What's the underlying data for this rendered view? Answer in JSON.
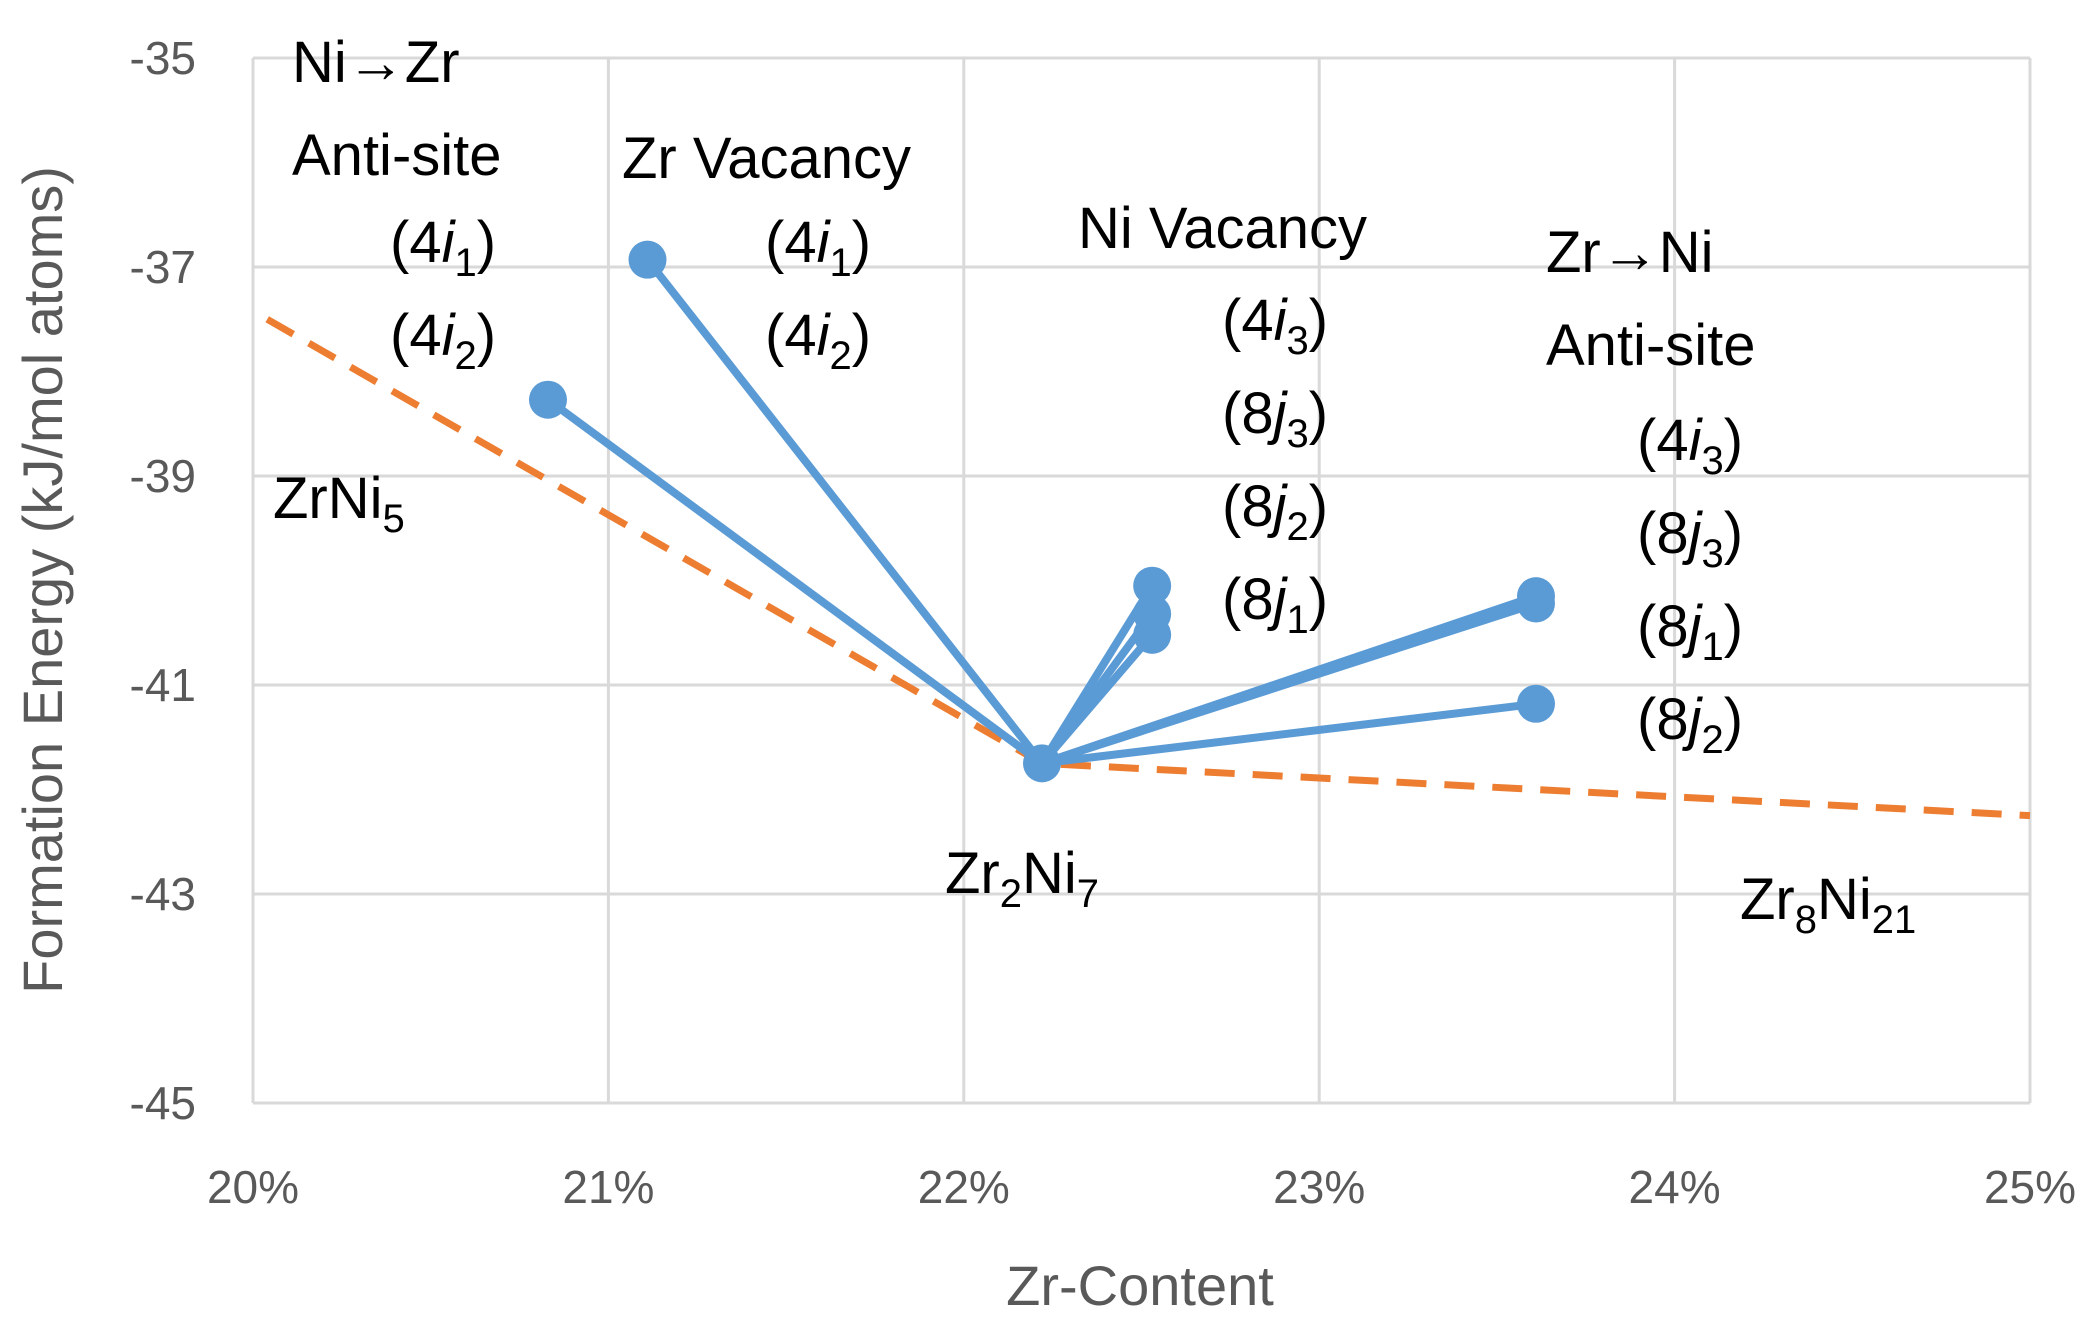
{
  "chart_data": {
    "type": "line",
    "title": "",
    "xlabel": "Zr-Content",
    "ylabel": "Formation Energy (kJ/mol atoms)",
    "xlim": [
      0.2,
      0.25
    ],
    "ylim": [
      -45,
      -35
    ],
    "x_ticks": [
      "20%",
      "21%",
      "22%",
      "23%",
      "24%",
      "25%"
    ],
    "y_ticks": [
      "-35",
      "-37",
      "-39",
      "-41",
      "-43",
      "-45"
    ],
    "grid": true,
    "legend": "none",
    "colors": {
      "defect": "#5b9bd5",
      "hull": "#ed7d31",
      "grid": "#d9d9d9",
      "tick": "#595959"
    },
    "hull": {
      "style": "dashed",
      "points": [
        {
          "x": 0.2004,
          "y": -37.5
        },
        {
          "x": 0.2222,
          "y": -41.75
        },
        {
          "x": 0.25,
          "y": -42.25
        }
      ]
    },
    "center": {
      "x": 0.2222,
      "y": -41.75
    },
    "defect_points": [
      {
        "x": 0.2083,
        "y": -38.27
      },
      {
        "x": 0.2111,
        "y": -36.93
      },
      {
        "x": 0.2253,
        "y": -40.05
      },
      {
        "x": 0.2253,
        "y": -40.32
      },
      {
        "x": 0.2253,
        "y": -40.52
      },
      {
        "x": 0.2361,
        "y": -40.15
      },
      {
        "x": 0.2361,
        "y": -40.22
      },
      {
        "x": 0.2361,
        "y": -41.18
      }
    ],
    "annotations": [
      {
        "lines": [
          [
            [
              "Ni→Zr",
              ""
            ]
          ],
          [
            [
              "Anti-site",
              ""
            ]
          ]
        ]
      },
      {
        "lines": [
          [
            [
              "(4",
              ""
            ],
            [
              "i",
              "it"
            ],
            [
              "1",
              "sub"
            ],
            [
              ")",
              ""
            ]
          ],
          [
            [
              "(4",
              ""
            ],
            [
              "i",
              "it"
            ],
            [
              "2",
              "sub"
            ],
            [
              ")",
              ""
            ]
          ]
        ]
      },
      {
        "lines": [
          [
            [
              "Zr Vacancy",
              ""
            ]
          ]
        ]
      },
      {
        "lines": [
          [
            [
              "(4",
              ""
            ],
            [
              "i",
              "it"
            ],
            [
              "1",
              "sub"
            ],
            [
              ")",
              ""
            ]
          ],
          [
            [
              "(4",
              ""
            ],
            [
              "i",
              "it"
            ],
            [
              "2",
              "sub"
            ],
            [
              ")",
              ""
            ]
          ]
        ]
      },
      {
        "lines": [
          [
            [
              "Ni Vacancy",
              ""
            ]
          ]
        ]
      },
      {
        "lines": [
          [
            [
              "(4",
              ""
            ],
            [
              "i",
              "it"
            ],
            [
              "3",
              "sub"
            ],
            [
              ")",
              ""
            ]
          ],
          [
            [
              "(8",
              ""
            ],
            [
              "j",
              "it"
            ],
            [
              "3",
              "sub"
            ],
            [
              ")",
              ""
            ]
          ],
          [
            [
              "(8",
              ""
            ],
            [
              "j",
              "it"
            ],
            [
              "2",
              "sub"
            ],
            [
              ")",
              ""
            ]
          ],
          [
            [
              "(8",
              ""
            ],
            [
              "j",
              "it"
            ],
            [
              "1",
              "sub"
            ],
            [
              ")",
              ""
            ]
          ]
        ]
      },
      {
        "lines": [
          [
            [
              "Zr→Ni",
              ""
            ]
          ],
          [
            [
              "Anti-site",
              ""
            ]
          ]
        ]
      },
      {
        "lines": [
          [
            [
              "(4",
              ""
            ],
            [
              "i",
              "it"
            ],
            [
              "3",
              "sub"
            ],
            [
              ")",
              ""
            ]
          ],
          [
            [
              "(8",
              ""
            ],
            [
              "j",
              "it"
            ],
            [
              "3",
              "sub"
            ],
            [
              ")",
              ""
            ]
          ],
          [
            [
              "(8",
              ""
            ],
            [
              "j",
              "it"
            ],
            [
              "1",
              "sub"
            ],
            [
              ")",
              ""
            ]
          ],
          [
            [
              "(8",
              ""
            ],
            [
              "j",
              "it"
            ],
            [
              "2",
              "sub"
            ],
            [
              ")",
              ""
            ]
          ]
        ]
      },
      {
        "lines": [
          [
            [
              "ZrNi",
              ""
            ],
            [
              "5",
              "sub"
            ]
          ]
        ]
      },
      {
        "lines": [
          [
            [
              "Zr",
              ""
            ],
            [
              "2",
              "sub"
            ],
            [
              "Ni",
              ""
            ],
            [
              "7",
              "sub"
            ]
          ]
        ]
      },
      {
        "lines": [
          [
            [
              "Zr",
              ""
            ],
            [
              "8",
              "sub"
            ],
            [
              "Ni",
              ""
            ],
            [
              "21",
              "sub"
            ]
          ]
        ]
      }
    ]
  }
}
